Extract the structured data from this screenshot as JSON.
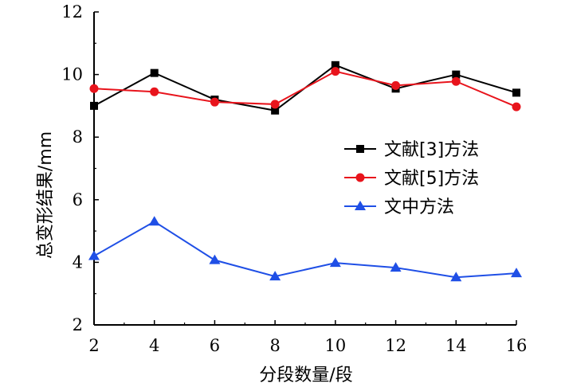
{
  "chart_data": {
    "type": "line",
    "xlabel": "分段数量/段",
    "ylabel": "总变形结果/mm",
    "x": [
      2,
      4,
      6,
      8,
      10,
      12,
      14,
      16
    ],
    "xlim": [
      2,
      16
    ],
    "ylim": [
      2,
      12
    ],
    "xticks": [
      "2",
      "4",
      "6",
      "8",
      "10",
      "12",
      "14",
      "16"
    ],
    "yticks": [
      "2",
      "4",
      "6",
      "8",
      "10",
      "12"
    ],
    "grid": false,
    "legend_position": "right-middle",
    "series": [
      {
        "name": "文献[3]方法",
        "color": "#000000",
        "marker": "square",
        "values": [
          9.0,
          10.05,
          9.2,
          8.85,
          10.3,
          9.55,
          10.0,
          9.42
        ]
      },
      {
        "name": "文献[5]方法",
        "color": "#e8141c",
        "marker": "circle",
        "values": [
          9.55,
          9.45,
          9.12,
          9.05,
          10.1,
          9.65,
          9.78,
          8.97
        ]
      },
      {
        "name": "文中方法",
        "color": "#1f4fe6",
        "marker": "triangle",
        "values": [
          4.2,
          5.3,
          4.07,
          3.55,
          3.98,
          3.83,
          3.52,
          3.65
        ]
      }
    ]
  }
}
